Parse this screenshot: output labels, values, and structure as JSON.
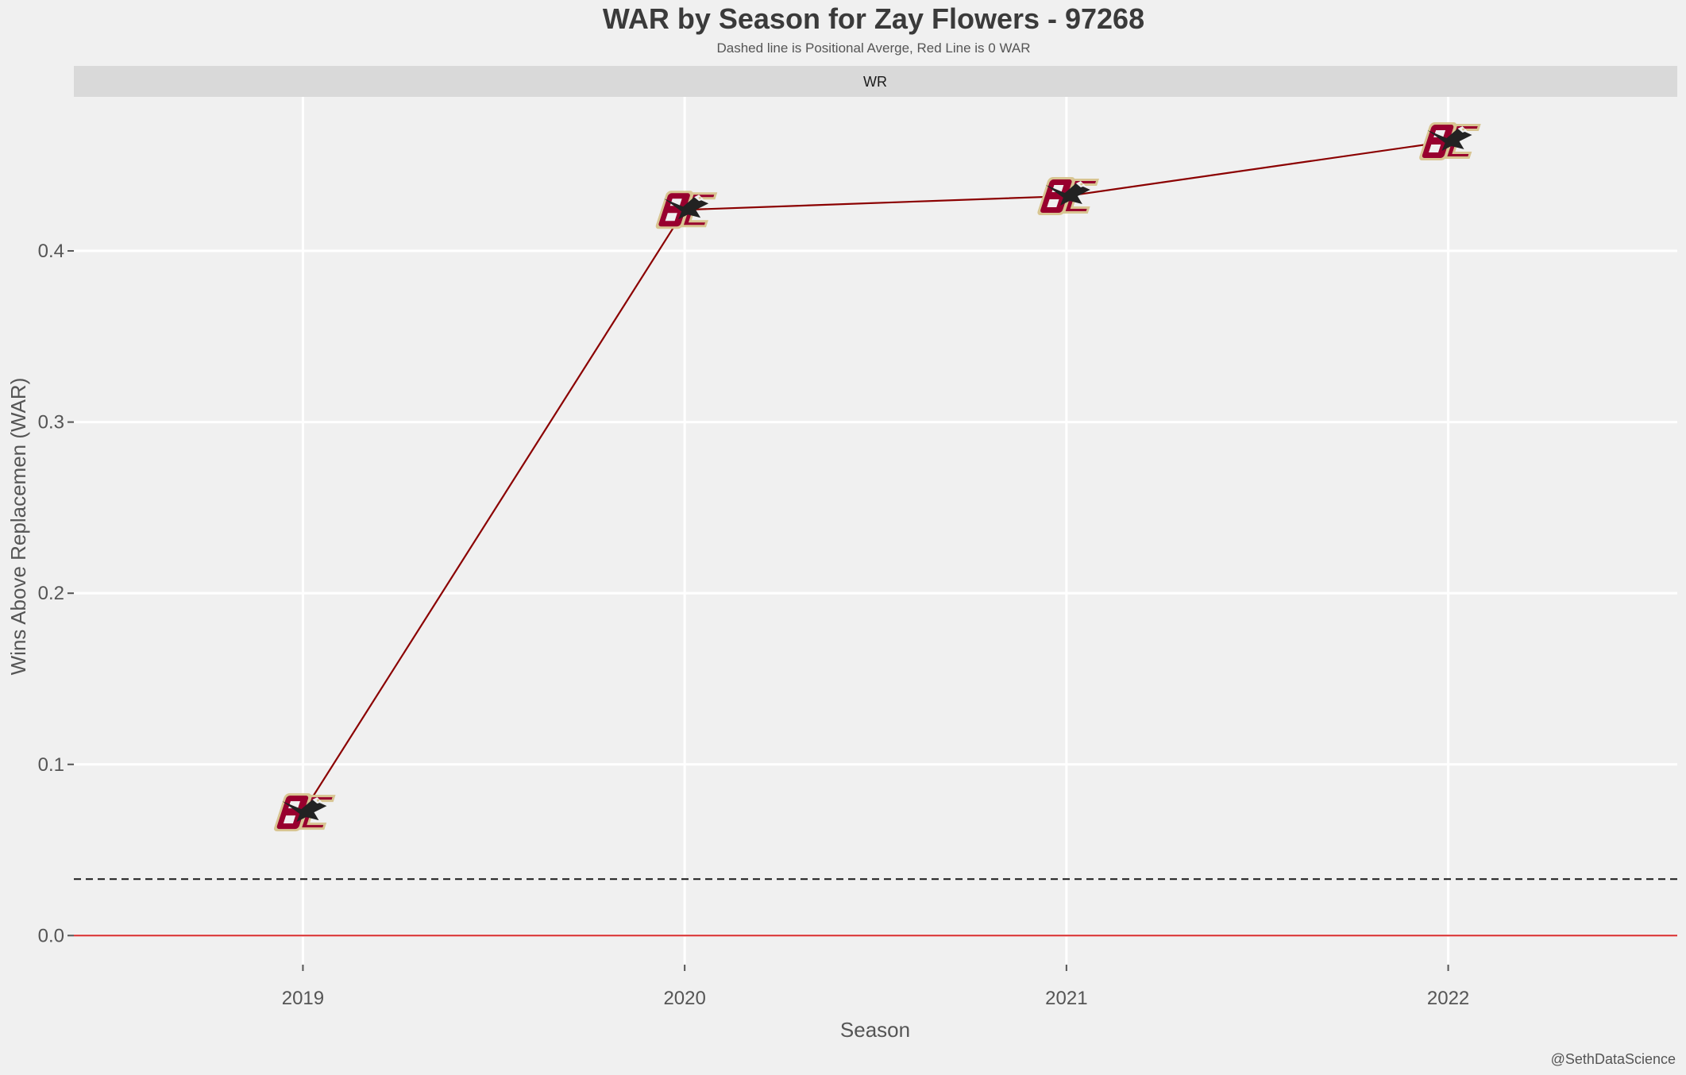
{
  "chart_data": {
    "type": "line",
    "title": "WAR by Season for Zay Flowers - 97268",
    "subtitle": "Dashed line is Positional Averge, Red Line is 0 WAR",
    "facet_label": "WR",
    "xlabel": "Season",
    "ylabel": "Wins Above Replacemen (WAR)",
    "caption": "@SethDataScience",
    "categories": [
      "2019",
      "2020",
      "2021",
      "2022"
    ],
    "series": [
      {
        "values": [
          0.072,
          0.424,
          0.432,
          0.464
        ],
        "color": "#8b0000",
        "marker": "bc-eagles-logo"
      }
    ],
    "reference_lines": [
      {
        "label": "Positional Averge",
        "y": 0.033,
        "style": "dashed",
        "color": "#1a1a1a"
      },
      {
        "label": "0 WAR",
        "y": 0.0,
        "style": "solid",
        "color": "#d62728"
      }
    ],
    "yticks": [
      0.0,
      0.1,
      0.2,
      0.3,
      0.4
    ],
    "ytick_labels": [
      "0.0",
      "0.1",
      "0.2",
      "0.3",
      "0.4"
    ],
    "ylim": [
      -0.017,
      0.49
    ],
    "grid": true,
    "legend": "none",
    "colors": {
      "background": "#f0f0f0",
      "strip": "#d9d9d9",
      "grid": "#ffffff",
      "line": "#8b0000",
      "logo_maroon": "#98002e",
      "logo_gold": "#d8c592"
    }
  }
}
